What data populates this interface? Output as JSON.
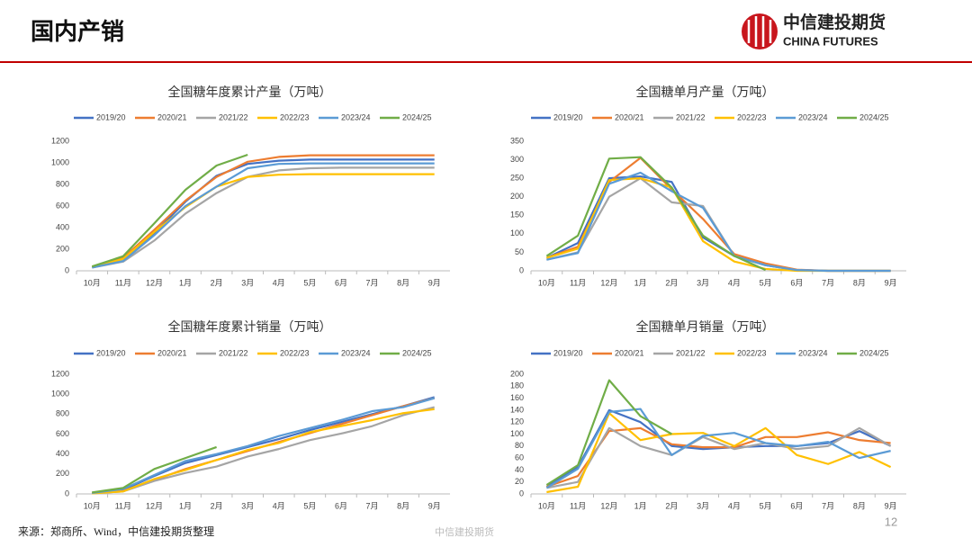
{
  "header": {
    "title": "国内产销",
    "logo_cn": "中信建投期货",
    "logo_en": "CHINA FUTURES"
  },
  "chart_data": [
    {
      "type": "line",
      "title": "全国糖年度累计产量（万吨）",
      "grid": false,
      "categories": [
        "10月",
        "11月",
        "12月",
        "1月",
        "2月",
        "3月",
        "4月",
        "5月",
        "6月",
        "7月",
        "8月",
        "9月"
      ],
      "ylim": [
        0,
        1200
      ],
      "yticks": [
        0,
        200,
        400,
        600,
        800,
        1000,
        1200
      ],
      "series": [
        {
          "name": "2019/20",
          "color": "#4472c4",
          "values": [
            35,
            110,
            350,
            640,
            880,
            990,
            1020,
            1030,
            1030,
            1030,
            1030,
            1030
          ]
        },
        {
          "name": "2020/21",
          "color": "#ed7d31",
          "values": [
            35,
            120,
            380,
            650,
            870,
            1010,
            1055,
            1070,
            1070,
            1070,
            1070,
            1070
          ]
        },
        {
          "name": "2021/22",
          "color": "#a5a5a5",
          "values": [
            30,
            85,
            280,
            530,
            720,
            870,
            930,
            950,
            955,
            955,
            955,
            955
          ]
        },
        {
          "name": "2022/23",
          "color": "#ffc000",
          "values": [
            35,
            110,
            360,
            590,
            780,
            870,
            890,
            895,
            895,
            895,
            895,
            895
          ]
        },
        {
          "name": "2023/24",
          "color": "#5b9bd5",
          "values": [
            30,
            90,
            330,
            600,
            780,
            950,
            990,
            995,
            995,
            995,
            995,
            995
          ]
        },
        {
          "name": "2024/25",
          "color": "#70ad47",
          "values": [
            40,
            135,
            440,
            750,
            975,
            1075,
            null,
            null,
            null,
            null,
            null,
            null
          ]
        }
      ]
    },
    {
      "type": "line",
      "title": "全国糖单月产量（万吨）",
      "grid": false,
      "categories": [
        "10月",
        "11月",
        "12月",
        "1月",
        "2月",
        "3月",
        "4月",
        "5月",
        "6月",
        "7月",
        "8月",
        "9月"
      ],
      "ylim": [
        0,
        350
      ],
      "yticks": [
        0,
        50,
        100,
        150,
        200,
        250,
        300,
        350
      ],
      "series": [
        {
          "name": "2019/20",
          "color": "#4472c4",
          "values": [
            35,
            75,
            250,
            255,
            240,
            90,
            40,
            15,
            2,
            0,
            0,
            0
          ]
        },
        {
          "name": "2020/21",
          "color": "#ed7d31",
          "values": [
            35,
            65,
            240,
            305,
            220,
            140,
            45,
            20,
            3,
            0,
            0,
            0
          ]
        },
        {
          "name": "2021/22",
          "color": "#a5a5a5",
          "values": [
            30,
            50,
            200,
            250,
            185,
            175,
            40,
            15,
            2,
            0,
            0,
            0
          ]
        },
        {
          "name": "2022/23",
          "color": "#ffc000",
          "values": [
            35,
            60,
            245,
            250,
            225,
            80,
            25,
            5,
            0,
            0,
            0,
            0
          ]
        },
        {
          "name": "2023/24",
          "color": "#5b9bd5",
          "values": [
            30,
            48,
            235,
            265,
            215,
            170,
            40,
            15,
            2,
            0,
            0,
            0
          ]
        },
        {
          "name": "2024/25",
          "color": "#70ad47",
          "values": [
            40,
            95,
            303,
            307,
            225,
            95,
            40,
            2,
            null,
            null,
            null,
            null
          ]
        }
      ]
    },
    {
      "type": "line",
      "title": "全国糖年度累计销量（万吨）",
      "grid": false,
      "categories": [
        "10月",
        "11月",
        "12月",
        "1月",
        "2月",
        "3月",
        "4月",
        "5月",
        "6月",
        "7月",
        "8月",
        "9月"
      ],
      "ylim": [
        0,
        1200
      ],
      "yticks": [
        0,
        200,
        400,
        600,
        800,
        1000,
        1200
      ],
      "series": [
        {
          "name": "2019/20",
          "color": "#4472c4",
          "values": [
            10,
            40,
            180,
            310,
            390,
            470,
            550,
            640,
            720,
            800,
            880,
            970
          ]
        },
        {
          "name": "2020/21",
          "color": "#ed7d31",
          "values": [
            10,
            30,
            140,
            250,
            340,
            430,
            520,
            610,
            700,
            790,
            880,
            960
          ]
        },
        {
          "name": "2021/22",
          "color": "#a5a5a5",
          "values": [
            5,
            25,
            130,
            210,
            275,
            375,
            450,
            540,
            605,
            680,
            790,
            870
          ]
        },
        {
          "name": "2022/23",
          "color": "#ffc000",
          "values": [
            5,
            25,
            150,
            240,
            340,
            440,
            510,
            620,
            680,
            740,
            810,
            850
          ]
        },
        {
          "name": "2023/24",
          "color": "#5b9bd5",
          "values": [
            10,
            50,
            190,
            330,
            400,
            480,
            580,
            660,
            740,
            830,
            870,
            960
          ]
        },
        {
          "name": "2024/25",
          "color": "#70ad47",
          "values": [
            15,
            60,
            250,
            360,
            470,
            null,
            null,
            null,
            null,
            null,
            null,
            null
          ]
        }
      ]
    },
    {
      "type": "line",
      "title": "全国糖单月销量（万吨）",
      "grid": false,
      "categories": [
        "10月",
        "11月",
        "12月",
        "1月",
        "2月",
        "3月",
        "4月",
        "5月",
        "6月",
        "7月",
        "8月",
        "9月"
      ],
      "ylim": [
        0,
        200
      ],
      "yticks": [
        0,
        20,
        40,
        60,
        80,
        100,
        120,
        140,
        160,
        180,
        200
      ],
      "series": [
        {
          "name": "2019/20",
          "color": "#4472c4",
          "values": [
            12,
            45,
            140,
            120,
            80,
            75,
            78,
            80,
            80,
            85,
            105,
            80
          ]
        },
        {
          "name": "2020/21",
          "color": "#ed7d31",
          "values": [
            12,
            30,
            105,
            110,
            83,
            78,
            78,
            95,
            95,
            103,
            90,
            85
          ]
        },
        {
          "name": "2021/22",
          "color": "#a5a5a5",
          "values": [
            10,
            20,
            110,
            80,
            65,
            95,
            75,
            85,
            75,
            80,
            110,
            80
          ]
        },
        {
          "name": "2022/23",
          "color": "#ffc000",
          "values": [
            3,
            12,
            135,
            90,
            100,
            102,
            80,
            110,
            65,
            50,
            70,
            45
          ]
        },
        {
          "name": "2023/24",
          "color": "#5b9bd5",
          "values": [
            10,
            42,
            137,
            142,
            65,
            97,
            102,
            85,
            80,
            87,
            60,
            72
          ]
        },
        {
          "name": "2024/25",
          "color": "#70ad47",
          "values": [
            15,
            48,
            190,
            130,
            100,
            null,
            null,
            null,
            null,
            null,
            null,
            null
          ]
        }
      ]
    }
  ],
  "footer": {
    "source": "来源：郑商所、Wind，中信建投期货整理",
    "watermark": "中信建投期货",
    "page": "12"
  }
}
